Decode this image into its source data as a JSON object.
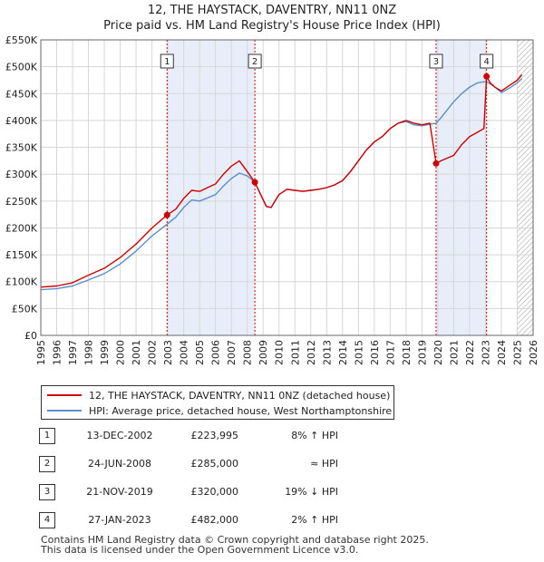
{
  "title_line1": "12, THE HAYSTACK, DAVENTRY, NN11 0NZ",
  "title_line2": "Price paid vs. HM Land Registry's House Price Index (HPI)",
  "legend": {
    "property": "12, THE HAYSTACK, DAVENTRY, NN11 0NZ (detached house)",
    "hpi": "HPI: Average price, detached house, West Northamptonshire"
  },
  "colors": {
    "property": "#cc0000",
    "hpi": "#5b8fc9",
    "shade": "#e8eef9",
    "grid": "#d6d6d6",
    "marker_line": "#cc0000"
  },
  "transactions": [
    {
      "num": "1",
      "date": "13-DEC-2002",
      "price": "£223,995",
      "hpi": "8% ↑ HPI"
    },
    {
      "num": "2",
      "date": "24-JUN-2008",
      "price": "£285,000",
      "hpi": "≈ HPI"
    },
    {
      "num": "3",
      "date": "21-NOV-2019",
      "price": "£320,000",
      "hpi": "19% ↓ HPI"
    },
    {
      "num": "4",
      "date": "27-JAN-2023",
      "price": "£482,000",
      "hpi": "2% ↑ HPI"
    }
  ],
  "footer": {
    "line1": "Contains HM Land Registry data © Crown copyright and database right 2025.",
    "line2": "This data is licensed under the Open Government Licence v3.0."
  },
  "chart_data": {
    "type": "line",
    "title": "12, THE HAYSTACK, DAVENTRY, NN11 0NZ",
    "subtitle": "Price paid vs. HM Land Registry's House Price Index (HPI)",
    "xlabel": "",
    "ylabel": "",
    "xlim": [
      1995,
      2026
    ],
    "ylim": [
      0,
      550000
    ],
    "x_ticks": [
      "1995",
      "1996",
      "1997",
      "1998",
      "1999",
      "2000",
      "2001",
      "2002",
      "2003",
      "2004",
      "2005",
      "2006",
      "2007",
      "2008",
      "2009",
      "2010",
      "2011",
      "2012",
      "2013",
      "2014",
      "2015",
      "2016",
      "2017",
      "2018",
      "2019",
      "2020",
      "2021",
      "2022",
      "2023",
      "2024",
      "2025",
      "2026"
    ],
    "y_ticks": [
      {
        "value": 0,
        "label": "£0"
      },
      {
        "value": 50000,
        "label": "£50K"
      },
      {
        "value": 100000,
        "label": "£100K"
      },
      {
        "value": 150000,
        "label": "£150K"
      },
      {
        "value": 200000,
        "label": "£200K"
      },
      {
        "value": 250000,
        "label": "£250K"
      },
      {
        "value": 300000,
        "label": "£300K"
      },
      {
        "value": 350000,
        "label": "£350K"
      },
      {
        "value": 400000,
        "label": "£400K"
      },
      {
        "value": 450000,
        "label": "£450K"
      },
      {
        "value": 500000,
        "label": "£500K"
      },
      {
        "value": 550000,
        "label": "£550K"
      }
    ],
    "grid": true,
    "legend_position": "bottom-left",
    "shaded_periods": [
      [
        2002.95,
        2008.48
      ],
      [
        2019.89,
        2023.07
      ]
    ],
    "hatched_from": 2025.0,
    "series": [
      {
        "name": "12, THE HAYSTACK, DAVENTRY, NN11 0NZ (detached house)",
        "x": [
          1995.0,
          1996.0,
          1997.0,
          1998.0,
          1999.0,
          2000.0,
          2001.0,
          2002.0,
          2002.95,
          2003.5,
          2004.0,
          2004.5,
          2005.0,
          2005.5,
          2006.0,
          2006.5,
          2007.0,
          2007.5,
          2008.0,
          2008.48,
          2008.8,
          2009.2,
          2009.5,
          2010.0,
          2010.5,
          2011.0,
          2011.5,
          2012.0,
          2012.5,
          2013.0,
          2013.5,
          2014.0,
          2014.5,
          2015.0,
          2015.5,
          2016.0,
          2016.5,
          2017.0,
          2017.5,
          2018.0,
          2018.5,
          2019.0,
          2019.5,
          2019.89,
          2020.2,
          2020.6,
          2021.0,
          2021.5,
          2022.0,
          2022.5,
          2022.9,
          2023.07,
          2023.3,
          2023.6,
          2024.0,
          2024.5,
          2025.0,
          2025.3
        ],
        "values": [
          90000,
          92000,
          98000,
          112000,
          125000,
          145000,
          170000,
          200000,
          223995,
          235000,
          255000,
          270000,
          268000,
          275000,
          282000,
          300000,
          315000,
          325000,
          305000,
          285000,
          265000,
          240000,
          238000,
          262000,
          272000,
          270000,
          268000,
          270000,
          272000,
          275000,
          280000,
          288000,
          305000,
          325000,
          345000,
          360000,
          370000,
          385000,
          395000,
          400000,
          395000,
          392000,
          395000,
          320000,
          325000,
          330000,
          335000,
          355000,
          370000,
          378000,
          385000,
          482000,
          470000,
          462000,
          455000,
          465000,
          475000,
          485000
        ]
      },
      {
        "name": "HPI: Average price, detached house, West Northamptonshire",
        "x": [
          1995.0,
          1996.0,
          1997.0,
          1998.0,
          1999.0,
          2000.0,
          2001.0,
          2002.0,
          2002.95,
          2003.5,
          2004.0,
          2004.5,
          2005.0,
          2005.5,
          2006.0,
          2006.5,
          2007.0,
          2007.5,
          2008.0,
          2008.48,
          2008.8,
          2009.2,
          2009.5,
          2010.0,
          2010.5,
          2011.0,
          2011.5,
          2012.0,
          2012.5,
          2013.0,
          2013.5,
          2014.0,
          2014.5,
          2015.0,
          2015.5,
          2016.0,
          2016.5,
          2017.0,
          2017.5,
          2018.0,
          2018.5,
          2019.0,
          2019.5,
          2019.89,
          2020.2,
          2020.6,
          2021.0,
          2021.5,
          2022.0,
          2022.5,
          2022.9,
          2023.07,
          2023.3,
          2023.6,
          2024.0,
          2024.5,
          2025.0,
          2025.3
        ],
        "values": [
          85000,
          87000,
          92000,
          103000,
          115000,
          133000,
          157000,
          185000,
          207000,
          220000,
          238000,
          252000,
          250000,
          256000,
          262000,
          278000,
          292000,
          302000,
          297000,
          285000,
          265000,
          240000,
          238000,
          262000,
          272000,
          270000,
          268000,
          270000,
          272000,
          275000,
          280000,
          288000,
          305000,
          325000,
          345000,
          360000,
          370000,
          385000,
          395000,
          398000,
          392000,
          390000,
          393000,
          395000,
          405000,
          420000,
          435000,
          450000,
          462000,
          470000,
          472000,
          472000,
          468000,
          462000,
          452000,
          460000,
          470000,
          478000
        ]
      }
    ],
    "markers": [
      {
        "label": "1",
        "x": 2002.95,
        "value": 223995
      },
      {
        "label": "2",
        "x": 2008.48,
        "value": 285000
      },
      {
        "label": "3",
        "x": 2019.89,
        "value": 320000
      },
      {
        "label": "4",
        "x": 2023.07,
        "value": 482000
      }
    ]
  }
}
